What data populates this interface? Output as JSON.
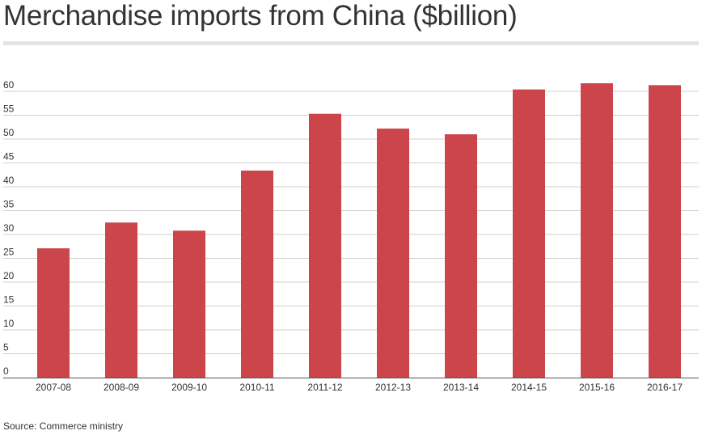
{
  "colors": {
    "bar": "#cc454b",
    "grid": "#cfcfcf",
    "axis": "#555555",
    "text": "#333333"
  },
  "source": "Source: Commerce ministry",
  "chart_data": {
    "type": "bar",
    "title": "Merchandise imports from China ($billion)",
    "xlabel": "",
    "ylabel": "",
    "categories": [
      "2007-08",
      "2008-09",
      "2009-10",
      "2010-11",
      "2011-12",
      "2012-13",
      "2013-14",
      "2014-15",
      "2015-16",
      "2016-17"
    ],
    "values": [
      27.1,
      32.5,
      30.8,
      43.4,
      55.3,
      52.2,
      51.0,
      60.4,
      61.7,
      61.3
    ],
    "yticks": [
      0,
      5,
      10,
      15,
      20,
      25,
      30,
      35,
      40,
      45,
      50,
      55,
      60
    ],
    "ylim": [
      0,
      62
    ],
    "grid": true,
    "legend": "none"
  }
}
